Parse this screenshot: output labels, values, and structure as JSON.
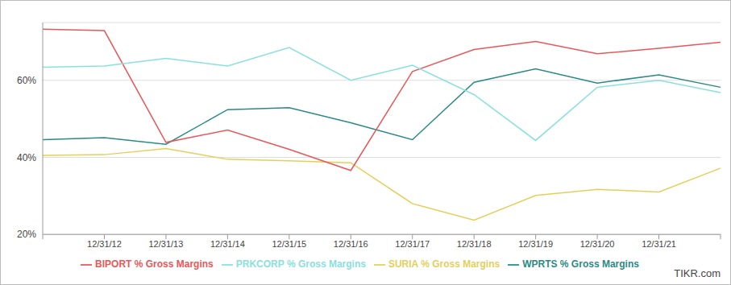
{
  "chart_data": {
    "type": "line",
    "categories": [
      null,
      "12/31/12",
      "12/31/13",
      "12/31/14",
      "12/31/15",
      "12/31/16",
      "12/31/17",
      "12/31/18",
      "12/31/19",
      "12/31/20",
      "12/31/21",
      null
    ],
    "series": [
      {
        "name": "SURIA % Gross Margins",
        "color": "#e3d05a",
        "values": [
          40.5,
          40.7,
          42.3,
          39.5,
          39.1,
          38.6,
          28.0,
          23.7,
          30.1,
          31.7,
          31.0,
          37.2
        ]
      },
      {
        "name": "WPRTS % Gross Margins",
        "color": "#2a8a86",
        "values": [
          44.6,
          45.1,
          43.4,
          52.4,
          52.9,
          49.0,
          44.6,
          59.5,
          63.0,
          59.3,
          61.4,
          58.2
        ]
      },
      {
        "name": "BIPORT % Gross Margins",
        "color": "#e8575a",
        "values": [
          73.3,
          72.9,
          43.9,
          47.1,
          42.1,
          36.6,
          62.3,
          68.0,
          70.1,
          66.9,
          68.3,
          69.9
        ]
      },
      {
        "name": "PRKCORP % Gross Margins",
        "color": "#8ae0dd",
        "values": [
          63.4,
          63.7,
          65.7,
          63.7,
          68.5,
          60.0,
          63.9,
          56.3,
          44.4,
          58.2,
          60.0,
          56.8
        ]
      }
    ],
    "ylim": [
      20,
      75
    ],
    "yticks": [
      {
        "value": 20,
        "label": "20%"
      },
      {
        "value": 40,
        "label": "40%"
      },
      {
        "value": 60,
        "label": "60%"
      }
    ],
    "grid": true,
    "legend": "bottom",
    "annotations": [
      "TIKR.com"
    ]
  }
}
